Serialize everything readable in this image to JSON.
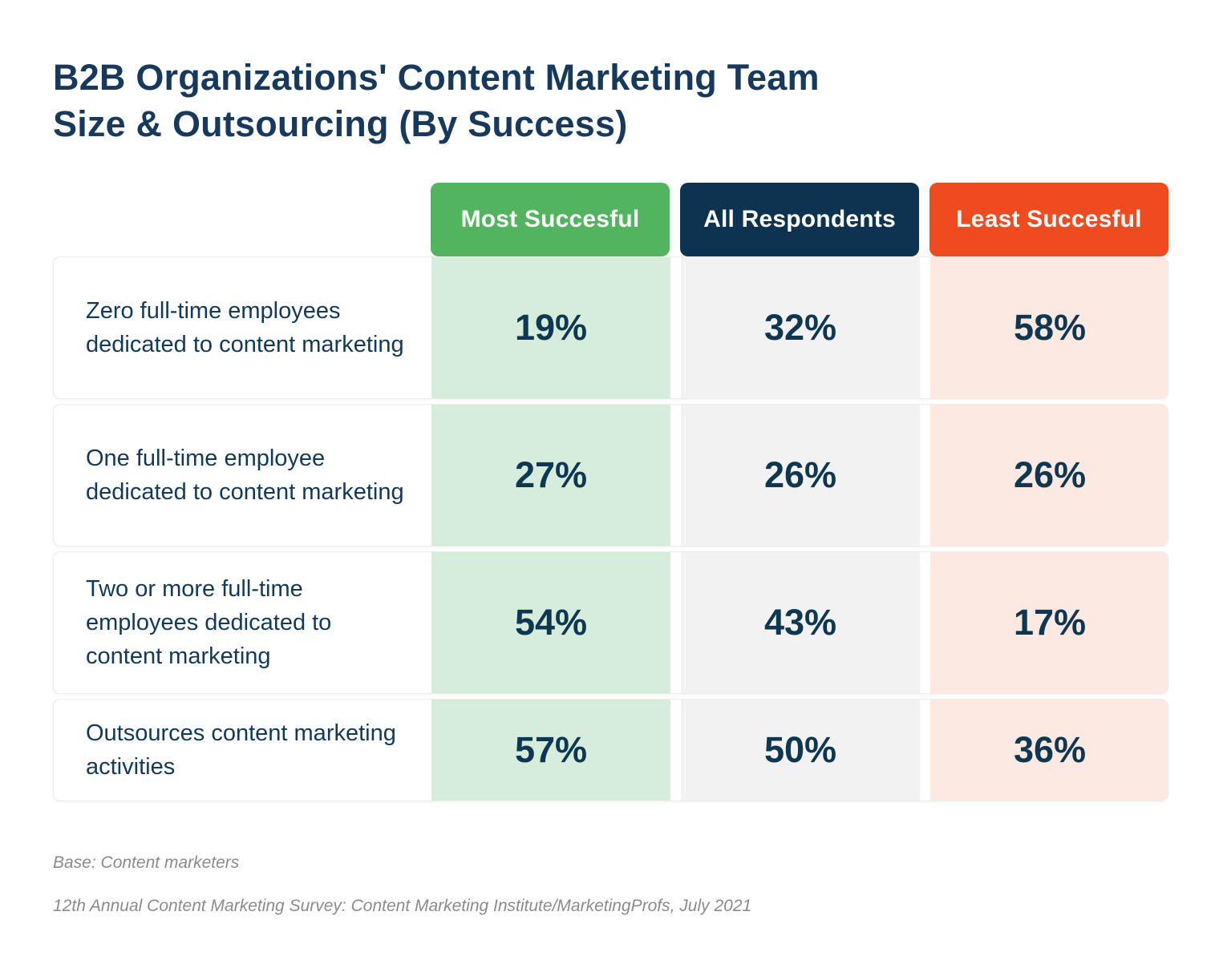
{
  "title": {
    "line1": "B2B Organizations' Content Marketing Team",
    "line2": "Size & Outsourcing (By Success)"
  },
  "table": {
    "columns": [
      {
        "label": "Most Succesful",
        "header_bg": "#52b45e",
        "cell_bg": "#d5edda"
      },
      {
        "label": "All Respondents",
        "header_bg": "#0d3350",
        "cell_bg": "#f2f2f2"
      },
      {
        "label": "Least Succesful",
        "header_bg": "#ee4b1e",
        "cell_bg": "#fce9e2"
      }
    ],
    "rows": [
      {
        "label": "Zero full-time employees dedicated to content marketing",
        "cells": [
          "19%",
          "32%",
          "58%"
        ]
      },
      {
        "label": "One full-time employee dedicated to content marketing",
        "cells": [
          "27%",
          "26%",
          "26%"
        ]
      },
      {
        "label": "Two or more full-time employees dedicated to content marketing",
        "cells": [
          "54%",
          "43%",
          "17%"
        ]
      },
      {
        "label": "Outsources content marketing activities",
        "cells": [
          "57%",
          "50%",
          "36%"
        ]
      }
    ]
  },
  "footnotes": {
    "base": "Base: Content marketers",
    "source": "12th Annual Content Marketing Survey: Content Marketing Institute/MarketingProfs, July 2021"
  },
  "colors": {
    "title_text": "#16395c",
    "value_text": "#0e3751",
    "label_text": "#123a56",
    "header_green": "#52b45e",
    "header_navy": "#0d3350",
    "header_orange": "#ee4b1e",
    "cell_green_tint": "#d5edda",
    "cell_gray_tint": "#f2f2f2",
    "cell_pink_tint": "#fce9e2",
    "footnote_text": "#8b8b8b",
    "row_border": "#ececec",
    "background": "#ffffff"
  },
  "chart_data": {
    "type": "table",
    "title": "B2B Organizations' Content Marketing Team Size & Outsourcing (By Success)",
    "categories": [
      "Zero full-time employees dedicated to content marketing",
      "One full-time employee dedicated to content marketing",
      "Two or more full-time employees dedicated to content marketing",
      "Outsources content marketing activities"
    ],
    "series": [
      {
        "name": "Most Succesful",
        "values": [
          19,
          27,
          54,
          57
        ]
      },
      {
        "name": "All Respondents",
        "values": [
          32,
          26,
          43,
          50
        ]
      },
      {
        "name": "Least Succesful",
        "values": [
          58,
          26,
          17,
          36
        ]
      }
    ],
    "value_unit": "%",
    "notes": [
      "Base: Content marketers",
      "12th Annual Content Marketing Survey: Content Marketing Institute/MarketingProfs, July 2021"
    ]
  }
}
